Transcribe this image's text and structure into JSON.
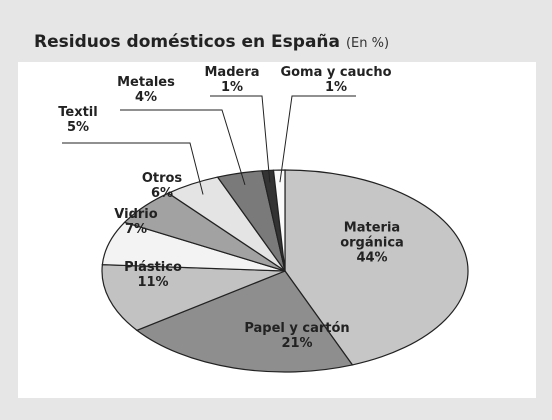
{
  "chart_data": {
    "type": "pie",
    "title": "Residuos domésticos en España",
    "subtitle": "(En %)",
    "categories": [
      "Materia orgánica",
      "Papel y cartón",
      "Plástico",
      "Vidrio",
      "Otros",
      "Textil",
      "Metales",
      "Madera",
      "Goma y caucho"
    ],
    "values": [
      44,
      21,
      11,
      7,
      6,
      5,
      4,
      1,
      1
    ],
    "value_labels": [
      "44%",
      "21%",
      "11%",
      "7%",
      "6%",
      "5%",
      "4%",
      "1%",
      "1%"
    ],
    "colors": [
      "#c6c6c6",
      "#8e8e8e",
      "#c2c2c2",
      "#f3f3f3",
      "#a2a2a2",
      "#e4e4e4",
      "#7a7a7a",
      "#333333",
      "#fafafa"
    ]
  }
}
